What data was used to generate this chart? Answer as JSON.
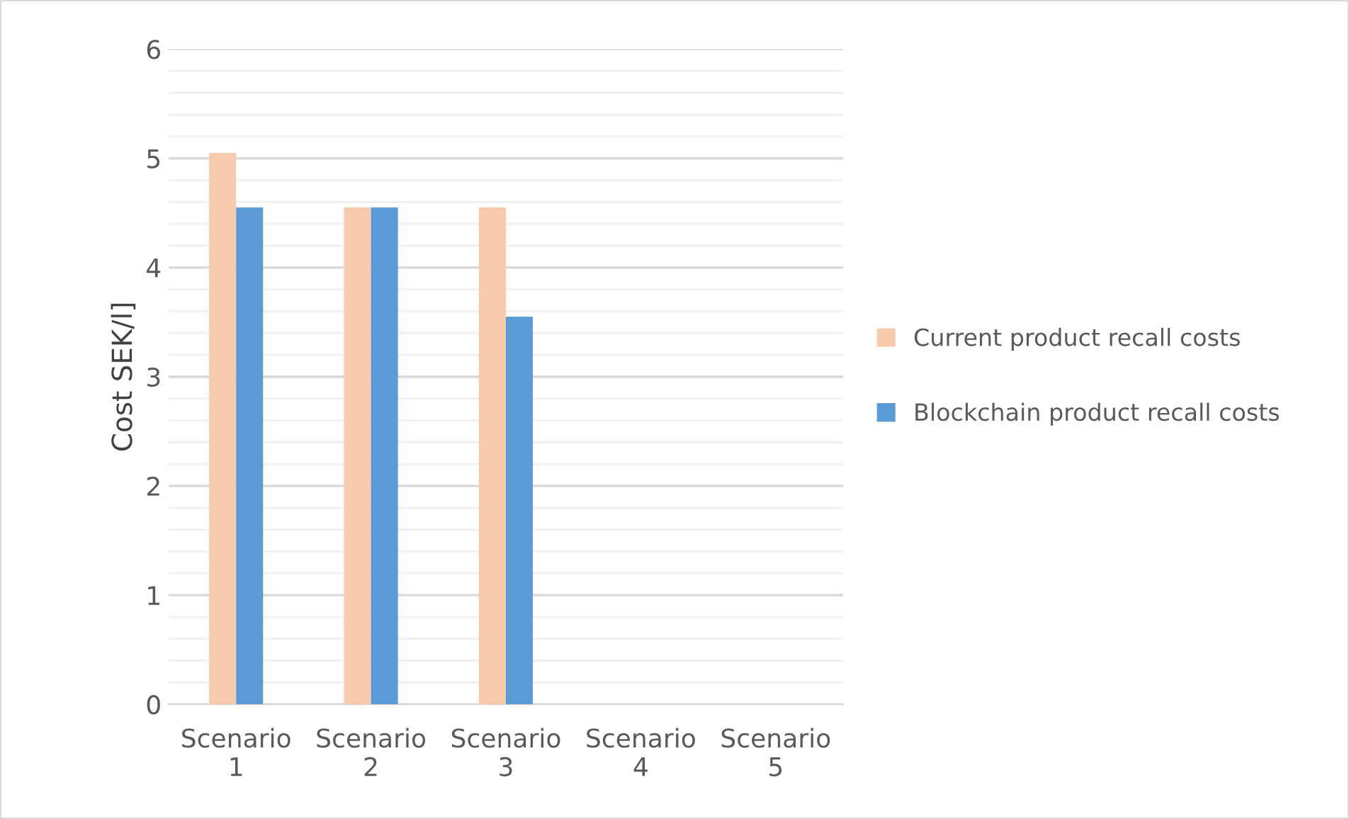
{
  "chart_data": {
    "type": "bar",
    "ylabel": "Cost SEK/l]",
    "categories": [
      "Scenario\n1",
      "Scenario\n2",
      "Scenario\n3",
      "Scenario\n4",
      "Scenario\n5"
    ],
    "series": [
      {
        "name": "Current product recall costs",
        "color": "#f8cbad",
        "values": [
          5.05,
          4.55,
          4.55,
          null,
          null
        ]
      },
      {
        "name": "Blockchain product recall costs",
        "color": "#5b9bd5",
        "values": [
          4.55,
          4.55,
          3.55,
          null,
          null
        ]
      }
    ],
    "ylim": [
      0,
      6
    ],
    "yticks": [
      0,
      {
        "value": 0.2,
        "label": null
      },
      {
        "value": 0.4,
        "label": null
      },
      {
        "value": 0.6,
        "label": null
      },
      {
        "value": 0.8,
        "label": null
      },
      1,
      {
        "value": 1.2,
        "label": null
      },
      {
        "value": 1.4,
        "label": null
      },
      {
        "value": 1.6,
        "label": null
      },
      {
        "value": 1.8,
        "label": null
      },
      2,
      {
        "value": 2.2,
        "label": null
      },
      {
        "value": 2.4,
        "label": null
      },
      {
        "value": 2.6,
        "label": null
      },
      {
        "value": 2.8,
        "label": null
      },
      3,
      {
        "value": 3.2,
        "label": null
      },
      {
        "value": 3.4,
        "label": null
      },
      {
        "value": 3.6,
        "label": null
      },
      {
        "value": 3.8,
        "label": null
      },
      4,
      {
        "value": 4.2,
        "label": null
      },
      {
        "value": 4.4,
        "label": null
      },
      {
        "value": 4.6,
        "label": null
      },
      {
        "value": 4.8,
        "label": null
      },
      5,
      {
        "value": 5.2,
        "label": null
      },
      {
        "value": 5.4,
        "label": null
      },
      {
        "value": 5.6,
        "label": null
      },
      {
        "value": 5.8,
        "label": null
      },
      6
    ],
    "grid": "y",
    "legend": "right"
  }
}
